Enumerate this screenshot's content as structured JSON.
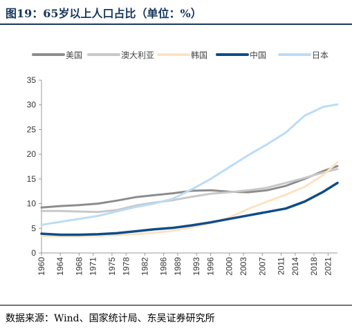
{
  "title": "图19：65岁以上人口占比（单位：%）",
  "source": "数据来源：Wind、国家统计局、东吴证券研究所",
  "chart_data": {
    "type": "line",
    "title": "",
    "xlabel": "",
    "ylabel": "",
    "ylim": [
      0,
      35
    ],
    "xlim": [
      1960,
      2023
    ],
    "yticks": [
      0,
      5,
      10,
      15,
      20,
      25,
      30,
      35
    ],
    "xticks": [
      "1960",
      "1964",
      "1968",
      "1971",
      "1975",
      "1978",
      "1982",
      "1986",
      "1989",
      "1993",
      "1996",
      "2000",
      "2003",
      "2007",
      "2011",
      "2014",
      "2018",
      "2021"
    ],
    "grid": false,
    "legend_position": "top",
    "series": [
      {
        "name": "美国",
        "color": "#8c8c8c",
        "x": [
          1960,
          1964,
          1968,
          1972,
          1976,
          1980,
          1984,
          1988,
          1992,
          1996,
          2000,
          2004,
          2008,
          2012,
          2016,
          2020,
          2023
        ],
        "y": [
          9.2,
          9.5,
          9.7,
          10.0,
          10.6,
          11.3,
          11.7,
          12.1,
          12.6,
          12.7,
          12.4,
          12.3,
          12.7,
          13.6,
          15.0,
          16.6,
          17.6
        ]
      },
      {
        "name": "澳大利亚",
        "color": "#c8c8c8",
        "x": [
          1960,
          1964,
          1968,
          1972,
          1976,
          1980,
          1984,
          1988,
          1992,
          1996,
          2000,
          2004,
          2008,
          2012,
          2016,
          2020,
          2023
        ],
        "y": [
          8.5,
          8.5,
          8.4,
          8.3,
          8.7,
          9.6,
          10.2,
          10.7,
          11.4,
          12.0,
          12.3,
          12.7,
          13.2,
          14.2,
          15.2,
          16.3,
          17.0
        ]
      },
      {
        "name": "韩国",
        "color": "#fbe3c2",
        "x": [
          1960,
          1964,
          1968,
          1972,
          1976,
          1980,
          1984,
          1988,
          1992,
          1996,
          2000,
          2004,
          2008,
          2012,
          2016,
          2020,
          2023
        ],
        "y": [
          3.4,
          3.4,
          3.4,
          3.5,
          3.6,
          3.8,
          4.1,
          4.5,
          5.2,
          6.0,
          7.2,
          8.9,
          10.4,
          11.8,
          13.4,
          15.8,
          18.4
        ]
      },
      {
        "name": "中国",
        "color": "#0f4c8a",
        "x": [
          1960,
          1964,
          1968,
          1972,
          1976,
          1980,
          1984,
          1988,
          1992,
          1996,
          2000,
          2004,
          2008,
          2012,
          2016,
          2020,
          2023
        ],
        "y": [
          3.9,
          3.7,
          3.7,
          3.8,
          4.0,
          4.4,
          4.8,
          5.1,
          5.6,
          6.2,
          6.9,
          7.6,
          8.3,
          9.0,
          10.4,
          12.4,
          14.2
        ]
      },
      {
        "name": "日本",
        "color": "#bcdcf5",
        "x": [
          1960,
          1964,
          1968,
          1972,
          1976,
          1980,
          1984,
          1988,
          1992,
          1996,
          2000,
          2004,
          2008,
          2012,
          2016,
          2020,
          2023
        ],
        "y": [
          5.7,
          6.3,
          6.9,
          7.5,
          8.4,
          9.3,
          10.0,
          11.0,
          12.9,
          15.0,
          17.4,
          19.8,
          22.0,
          24.4,
          27.8,
          29.6,
          30.1
        ]
      }
    ]
  }
}
